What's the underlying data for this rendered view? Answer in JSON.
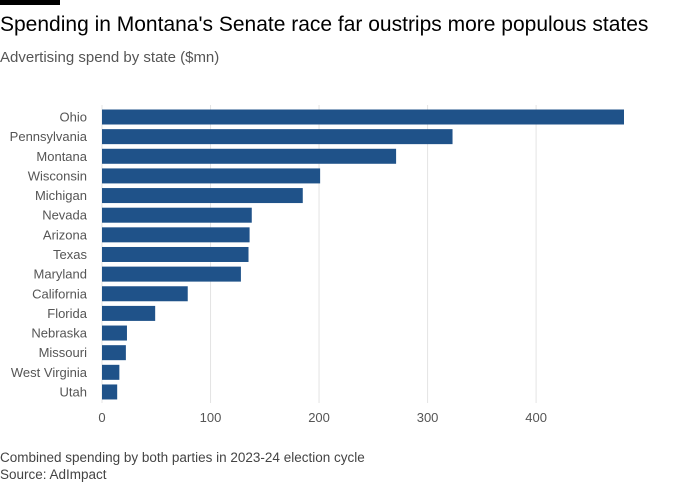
{
  "header": {
    "title": "Spending in Montana's Senate race far oustrips more populous states",
    "subtitle": "Advertising spend by state ($mn)"
  },
  "footer": {
    "note": "Combined spending by both parties in 2023-24 election cycle",
    "source": "Source: AdImpact"
  },
  "colors": {
    "bar": "#1f5289",
    "grid": "#e4e4e4",
    "top_rule": "#000000"
  },
  "chart_data": {
    "type": "bar",
    "orientation": "horizontal",
    "categories": [
      "Ohio",
      "Pennsylvania",
      "Montana",
      "Wisconsin",
      "Michigan",
      "Nevada",
      "Arizona",
      "Texas",
      "Maryland",
      "California",
      "Florida",
      "Nebraska",
      "Missouri",
      "West Virginia",
      "Utah"
    ],
    "values": [
      481,
      323,
      271,
      201,
      185,
      138,
      136,
      135,
      128,
      79,
      49,
      23,
      22,
      16,
      14
    ],
    "title": "Spending in Montana's Senate race far oustrips more populous states",
    "subtitle": "Advertising spend by state ($mn)",
    "xlabel": "",
    "ylabel": "",
    "xlim": [
      0,
      481
    ],
    "xticks": [
      0,
      100,
      200,
      300,
      400
    ],
    "grid": true,
    "legend": "none"
  }
}
